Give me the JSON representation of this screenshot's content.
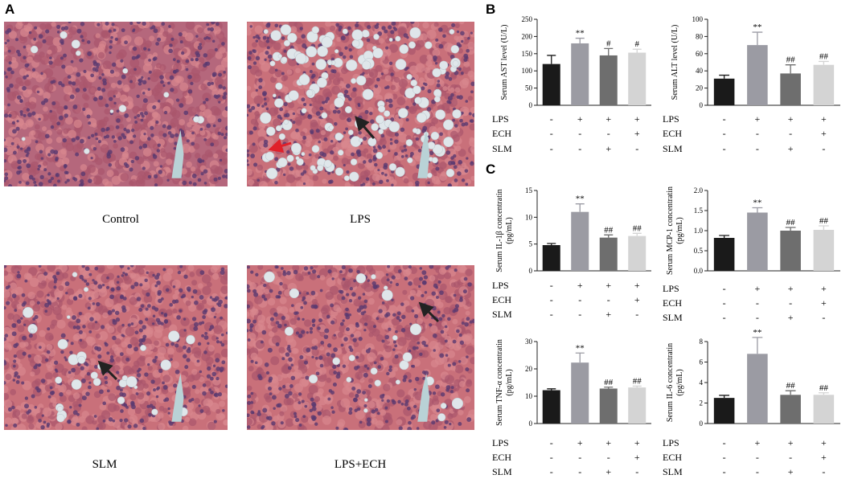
{
  "panel_labels": [
    "A",
    "B",
    "C"
  ],
  "images": [
    {
      "caption": "Control"
    },
    {
      "caption": "LPS"
    },
    {
      "caption": "SLM"
    },
    {
      "caption": "LPS+ECH"
    }
  ],
  "chart_data": [
    {
      "type": "bar",
      "ylabel": [
        "Serum AST level (U/L)"
      ],
      "ylim": [
        0,
        250
      ],
      "yticks": [
        0,
        50,
        100,
        150,
        200,
        250
      ],
      "values": [
        120,
        180,
        145,
        153
      ],
      "errors": [
        25,
        15,
        20,
        10
      ],
      "labels": [
        null,
        "**",
        "#",
        "#"
      ],
      "colors": [
        "#1a1a1a",
        "#9b9ba3",
        "#6e6e6e",
        "#d4d4d4"
      ],
      "conditions": [
        {
          "name": "LPS",
          "signs": [
            "-",
            "+",
            "+",
            "+"
          ]
        },
        {
          "name": "ECH",
          "signs": [
            "-",
            "-",
            "-",
            "+"
          ]
        },
        {
          "name": "SLM",
          "signs": [
            "-",
            "-",
            "+",
            "-"
          ]
        }
      ]
    },
    {
      "type": "bar",
      "ylabel": [
        "Serum ALT level (U/L)"
      ],
      "ylim": [
        0,
        100
      ],
      "yticks": [
        0,
        20,
        40,
        60,
        80,
        100
      ],
      "values": [
        31,
        70,
        37,
        47
      ],
      "errors": [
        4,
        15,
        10,
        4
      ],
      "labels": [
        null,
        "**",
        "##",
        "##"
      ],
      "colors": [
        "#1a1a1a",
        "#9b9ba3",
        "#6e6e6e",
        "#d4d4d4"
      ],
      "conditions": [
        {
          "name": "LPS",
          "signs": [
            "-",
            "+",
            "+",
            "+"
          ]
        },
        {
          "name": "ECH",
          "signs": [
            "-",
            "-",
            "-",
            "+"
          ]
        },
        {
          "name": "SLM",
          "signs": [
            "-",
            "-",
            "+",
            "-"
          ]
        }
      ]
    },
    {
      "type": "bar",
      "ylabel": [
        "Serum IL-1β concentratin",
        "(pg/mL)"
      ],
      "ylim": [
        0,
        15
      ],
      "yticks": [
        0,
        5,
        10,
        15
      ],
      "values": [
        4.8,
        11,
        6.2,
        6.5
      ],
      "errors": [
        0.3,
        1.5,
        0.5,
        0.5
      ],
      "labels": [
        null,
        "**",
        "##",
        "##"
      ],
      "colors": [
        "#1a1a1a",
        "#9b9ba3",
        "#6e6e6e",
        "#d4d4d4"
      ],
      "conditions": [
        {
          "name": "LPS",
          "signs": [
            "-",
            "+",
            "+",
            "+"
          ]
        },
        {
          "name": "ECH",
          "signs": [
            "-",
            "-",
            "-",
            "+"
          ]
        },
        {
          "name": "SLM",
          "signs": [
            "-",
            "-",
            "+",
            "-"
          ]
        }
      ]
    },
    {
      "type": "bar",
      "ylabel": [
        "Serum MCP-1 concentratin",
        "(pg/mL)"
      ],
      "ylim": [
        0,
        2
      ],
      "yticks": [
        {
          "value": 0,
          "label": "0.0"
        },
        0.5,
        {
          "value": 1,
          "label": "1.0"
        },
        1.5,
        {
          "value": 2,
          "label": "2.0"
        }
      ],
      "values": [
        0.82,
        1.45,
        1.0,
        1.02
      ],
      "errors": [
        0.06,
        0.12,
        0.08,
        0.1
      ],
      "labels": [
        null,
        "**",
        "##",
        "##"
      ],
      "colors": [
        "#1a1a1a",
        "#9b9ba3",
        "#6e6e6e",
        "#d4d4d4"
      ],
      "conditions": [
        {
          "name": "LPS",
          "signs": [
            "-",
            "+",
            "+",
            "+"
          ]
        },
        {
          "name": "ECH",
          "signs": [
            "-",
            "-",
            "-",
            "+"
          ]
        },
        {
          "name": "SLM",
          "signs": [
            "-",
            "-",
            "+",
            "-"
          ]
        }
      ]
    },
    {
      "type": "bar",
      "ylabel": [
        "Serum TNF-α concentratin",
        "(pg/mL)"
      ],
      "ylim": [
        0,
        30
      ],
      "yticks": [
        0,
        10,
        20,
        30
      ],
      "values": [
        12.2,
        22.3,
        12.8,
        13.2
      ],
      "errors": [
        0.5,
        3.5,
        0.5,
        0.5
      ],
      "labels": [
        null,
        "**",
        "##",
        "##"
      ],
      "colors": [
        "#1a1a1a",
        "#9b9ba3",
        "#6e6e6e",
        "#d4d4d4"
      ],
      "conditions": [
        {
          "name": "LPS",
          "signs": [
            "-",
            "+",
            "+",
            "+"
          ]
        },
        {
          "name": "ECH",
          "signs": [
            "-",
            "-",
            "-",
            "+"
          ]
        },
        {
          "name": "SLM",
          "signs": [
            "-",
            "-",
            "+",
            "-"
          ]
        }
      ]
    },
    {
      "type": "bar",
      "ylabel": [
        "Serum IL-6 concentratin",
        "(pg/mL)"
      ],
      "ylim": [
        0,
        8
      ],
      "yticks": [
        0,
        2,
        4,
        6,
        8
      ],
      "values": [
        2.5,
        6.8,
        2.8,
        2.8
      ],
      "errors": [
        0.25,
        1.6,
        0.4,
        0.2
      ],
      "labels": [
        null,
        "**",
        "##",
        "##"
      ],
      "colors": [
        "#1a1a1a",
        "#9b9ba3",
        "#6e6e6e",
        "#d4d4d4"
      ],
      "conditions": [
        {
          "name": "LPS",
          "signs": [
            "-",
            "+",
            "+",
            "+"
          ]
        },
        {
          "name": "ECH",
          "signs": [
            "-",
            "-",
            "-",
            "+"
          ]
        },
        {
          "name": "SLM",
          "signs": [
            "-",
            "-",
            "+",
            "-"
          ]
        }
      ]
    }
  ]
}
